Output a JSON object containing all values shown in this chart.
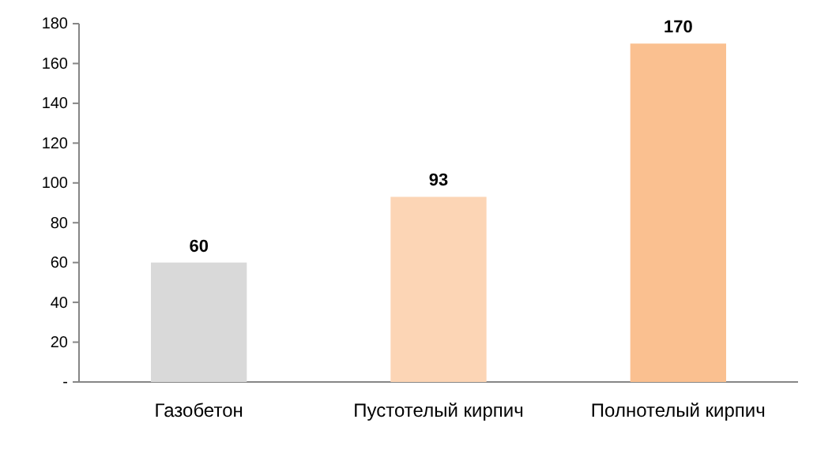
{
  "chart_data": {
    "type": "bar",
    "categories": [
      "Газобетон",
      "Пустотелый кирпич",
      "Полнотелый кирпич"
    ],
    "values": [
      60,
      93,
      170
    ],
    "colors": [
      "#d9d9d9",
      "#fcd5b5",
      "#fac090"
    ],
    "ylim": [
      0,
      180
    ],
    "yticks": [
      {
        "value": 0,
        "label": "-"
      },
      20,
      40,
      60,
      80,
      100,
      120,
      140,
      160,
      180
    ],
    "data_labels": true,
    "grid": false
  }
}
